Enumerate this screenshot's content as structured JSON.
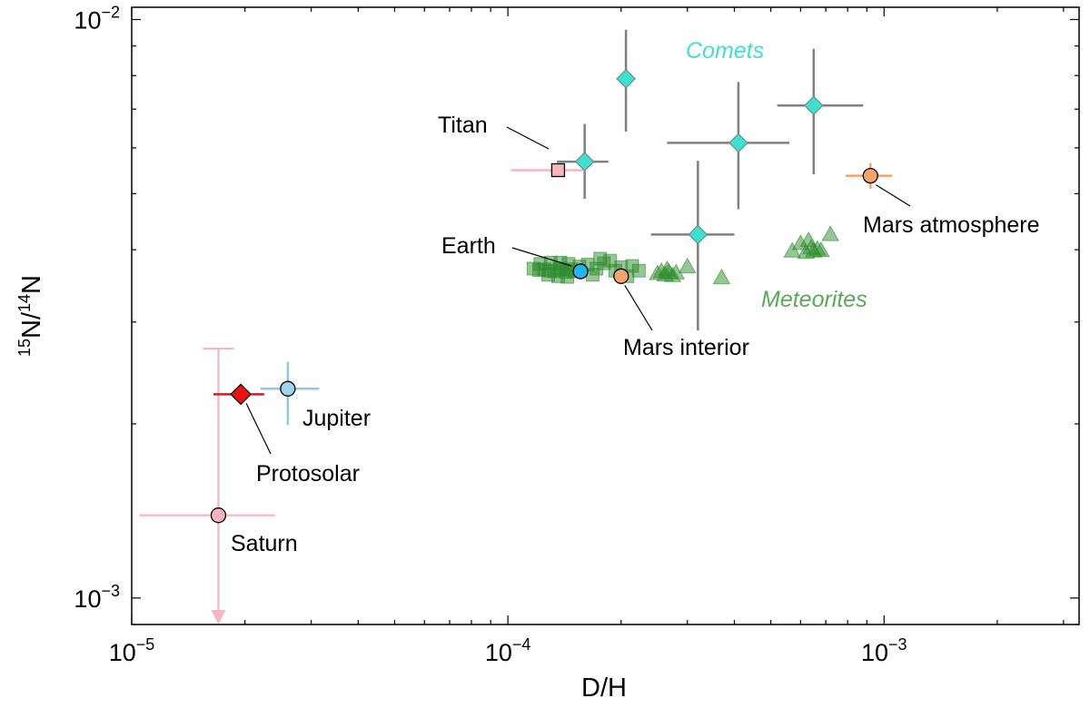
{
  "chart_data": {
    "type": "scatter",
    "x_scale": "log",
    "y_scale": "log",
    "xlim": [
      1e-05,
      0.0033
    ],
    "ylim": [
      0.0009,
      0.0105
    ],
    "xlabel": "D/H",
    "ylabel": "15N/14N",
    "ylabel_parts": {
      "sup1": "15",
      "mid": "N/",
      "sup2": "14",
      "end": "N"
    },
    "x_ticks": [
      {
        "value": 1e-05,
        "base": "10",
        "exp": "−5"
      },
      {
        "value": 0.0001,
        "base": "10",
        "exp": "−4"
      },
      {
        "value": 0.001,
        "base": "10",
        "exp": "−3"
      }
    ],
    "y_ticks": [
      {
        "value": 0.001,
        "base": "10",
        "exp": "−3"
      },
      {
        "value": 0.01,
        "base": "10",
        "exp": "−2"
      }
    ],
    "colors": {
      "comets": "#40e0d0",
      "meteorites": "#2e8b2e",
      "meteorites_label": "#5aa85a",
      "saturn": "#f6b6c0",
      "jupiter": "#9fd4ee",
      "jupiter_err": "#8ccbe8",
      "protosolar": "#ee1111",
      "titan": "#f6b6c0",
      "earth": "#22b5f0",
      "mars": "#f6a56a",
      "error_gray": "#808080"
    },
    "series": [
      {
        "name": "Comets",
        "label": "Comets",
        "marker": "diamond",
        "points": [
          {
            "x": 0.00016,
            "y": 0.00568,
            "xerr": [
              0.000135,
              0.000185
            ],
            "yerr": [
              0.0049,
              0.0066
            ]
          },
          {
            "x": 0.000206,
            "y": 0.0079,
            "xerr": [
              0.000195,
              0.000218
            ],
            "yerr": [
              0.0064,
              0.0096
            ]
          },
          {
            "x": 0.00032,
            "y": 0.00425,
            "xerr": [
              0.00024,
              0.0004
            ],
            "yerr": [
              0.0029,
              0.0057
            ]
          },
          {
            "x": 0.00041,
            "y": 0.00612,
            "xerr": [
              0.000265,
              0.00056
            ],
            "yerr": [
              0.0047,
              0.0078
            ]
          },
          {
            "x": 0.00065,
            "y": 0.0071,
            "xerr": [
              0.00052,
              0.00088
            ],
            "yerr": [
              0.0054,
              0.0089
            ]
          }
        ]
      },
      {
        "name": "Meteorites (squares)",
        "marker": "square",
        "points": [
          {
            "x": 0.000117,
            "y": 0.00371
          },
          {
            "x": 0.000121,
            "y": 0.00369
          },
          {
            "x": 0.000125,
            "y": 0.0037
          },
          {
            "x": 0.000129,
            "y": 0.00368
          },
          {
            "x": 0.000133,
            "y": 0.00367
          },
          {
            "x": 0.000137,
            "y": 0.00371
          },
          {
            "x": 0.00014,
            "y": 0.00369
          },
          {
            "x": 0.000143,
            "y": 0.00366
          },
          {
            "x": 0.000147,
            "y": 0.0037
          },
          {
            "x": 0.00015,
            "y": 0.00367
          },
          {
            "x": 0.000122,
            "y": 0.00378
          },
          {
            "x": 0.00013,
            "y": 0.0038
          },
          {
            "x": 0.000138,
            "y": 0.0038
          },
          {
            "x": 0.000145,
            "y": 0.00378
          },
          {
            "x": 0.000128,
            "y": 0.00362
          },
          {
            "x": 0.000136,
            "y": 0.0036
          },
          {
            "x": 0.000144,
            "y": 0.00359
          },
          {
            "x": 0.000155,
            "y": 0.00374
          },
          {
            "x": 0.000163,
            "y": 0.00377
          },
          {
            "x": 0.000172,
            "y": 0.00371
          },
          {
            "x": 0.00018,
            "y": 0.00379
          },
          {
            "x": 0.000187,
            "y": 0.00383
          },
          {
            "x": 0.000193,
            "y": 0.00368
          },
          {
            "x": 0.0002,
            "y": 0.00373
          },
          {
            "x": 0.000208,
            "y": 0.0036
          },
          {
            "x": 0.000214,
            "y": 0.00375
          },
          {
            "x": 0.000223,
            "y": 0.00368
          },
          {
            "x": 0.000168,
            "y": 0.00362
          },
          {
            "x": 0.000176,
            "y": 0.00386
          }
        ]
      },
      {
        "name": "Meteorites (triangles)",
        "marker": "triangle",
        "points": [
          {
            "x": 0.00025,
            "y": 0.00364
          },
          {
            "x": 0.000256,
            "y": 0.00367
          },
          {
            "x": 0.000262,
            "y": 0.00362
          },
          {
            "x": 0.000268,
            "y": 0.00366
          },
          {
            "x": 0.000274,
            "y": 0.00361
          },
          {
            "x": 0.00028,
            "y": 0.00365
          },
          {
            "x": 0.000265,
            "y": 0.0037
          },
          {
            "x": 0.0003,
            "y": 0.00374
          },
          {
            "x": 0.00037,
            "y": 0.00358
          },
          {
            "x": 0.00057,
            "y": 0.00398
          },
          {
            "x": 0.0006,
            "y": 0.0041
          },
          {
            "x": 0.00062,
            "y": 0.00396
          },
          {
            "x": 0.00064,
            "y": 0.00403
          },
          {
            "x": 0.00065,
            "y": 0.00398
          },
          {
            "x": 0.000665,
            "y": 0.00401
          },
          {
            "x": 0.00068,
            "y": 0.00399
          },
          {
            "x": 0.00063,
            "y": 0.00415
          },
          {
            "x": 0.00072,
            "y": 0.00425
          }
        ]
      },
      {
        "name": "Meteorites",
        "label": "Meteorites",
        "marker": "none",
        "points": []
      },
      {
        "name": "Saturn",
        "label": "Saturn",
        "marker": "circle",
        "points": [
          {
            "x": 1.7e-05,
            "y": 0.00139,
            "xerr": [
              1.05e-05,
              2.4e-05
            ],
            "yerr": [
              0.0009,
              0.0027
            ],
            "upper_limit": true
          }
        ]
      },
      {
        "name": "Jupiter",
        "label": "Jupiter",
        "marker": "circle",
        "points": [
          {
            "x": 2.6e-05,
            "y": 0.0023,
            "xerr": [
              2.2e-05,
              3.15e-05
            ],
            "yerr": [
              0.00199,
              0.00256
            ]
          }
        ]
      },
      {
        "name": "Protosolar",
        "label": "Protosolar",
        "marker": "diamond",
        "points": [
          {
            "x": 1.95e-05,
            "y": 0.00225,
            "xerr": [
              1.65e-05,
              2.25e-05
            ],
            "yerr": [
              0.00225,
              0.00225
            ]
          }
        ]
      },
      {
        "name": "Titan",
        "label": "Titan",
        "marker": "square",
        "points": [
          {
            "x": 0.000136,
            "y": 0.00549,
            "xerr": [
              0.000102,
              0.00016
            ],
            "yerr": [
              0.00549,
              0.00549
            ]
          }
        ]
      },
      {
        "name": "Earth",
        "label": "Earth",
        "marker": "circle",
        "points": [
          {
            "x": 0.000156,
            "y": 0.00367
          }
        ]
      },
      {
        "name": "Mars interior",
        "label": "Mars interior",
        "marker": "circle",
        "points": [
          {
            "x": 0.0002,
            "y": 0.0036
          }
        ]
      },
      {
        "name": "Mars atmosphere",
        "label": "Mars atmosphere",
        "marker": "circle",
        "points": [
          {
            "x": 0.00092,
            "y": 0.00537,
            "xerr": [
              0.00079,
              0.00105
            ],
            "yerr": [
              0.0051,
              0.00565
            ]
          }
        ]
      }
    ]
  }
}
